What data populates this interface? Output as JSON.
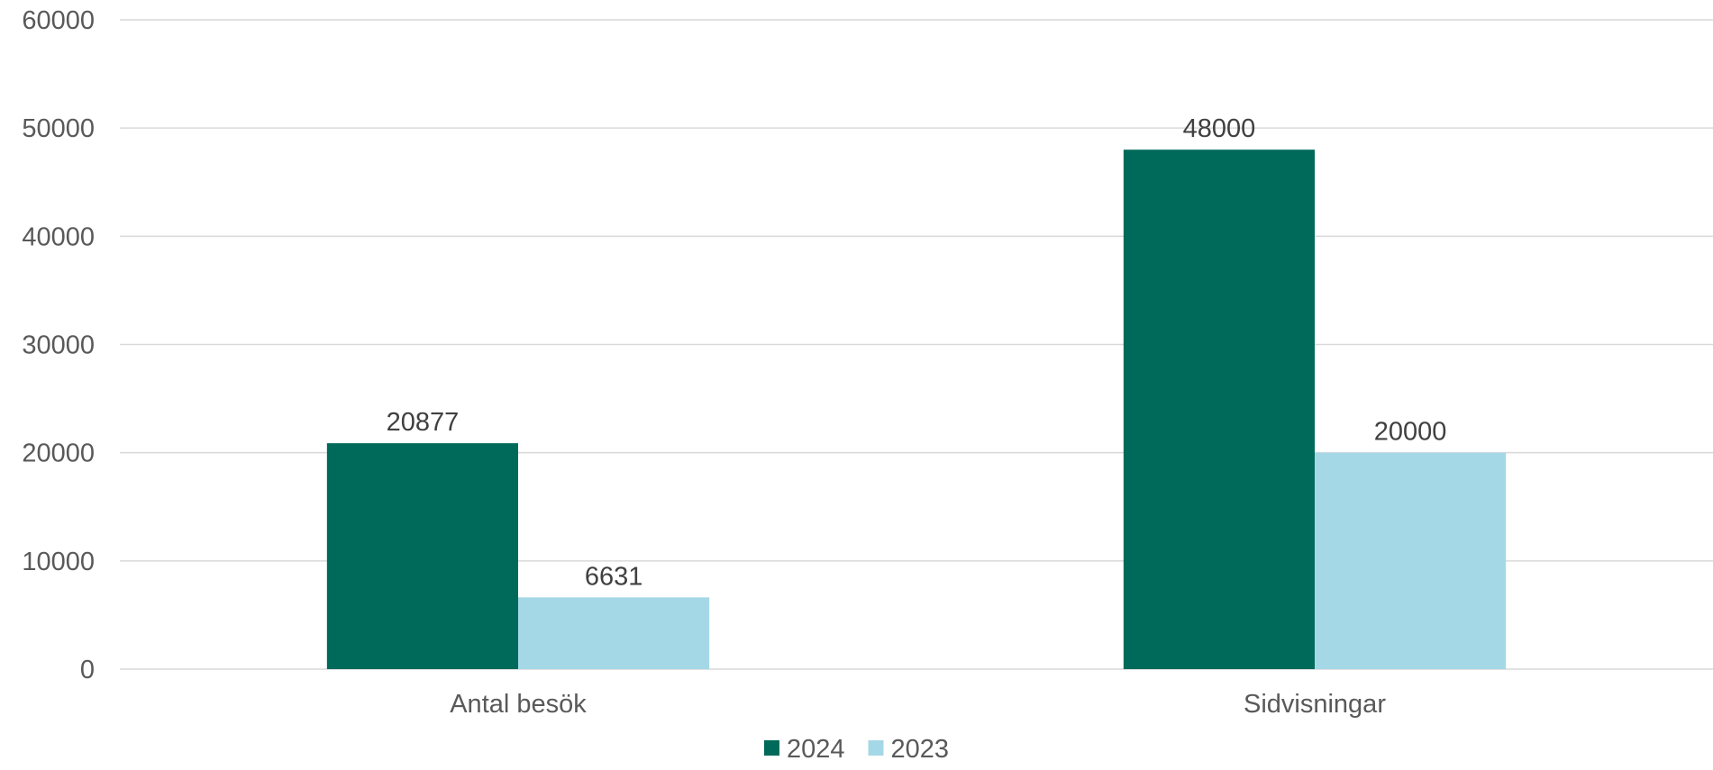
{
  "chart_data": {
    "type": "bar",
    "categories": [
      "Antal besök",
      "Sidvisningar"
    ],
    "series": [
      {
        "name": "2024",
        "values": [
          20877,
          48000
        ],
        "color": "#006a5a"
      },
      {
        "name": "2023",
        "values": [
          6631,
          20000
        ],
        "color": "#a5d8e6"
      }
    ],
    "yticks": [
      0,
      10000,
      20000,
      30000,
      40000,
      50000,
      60000
    ],
    "ylim": [
      0,
      60000
    ],
    "grid": true,
    "legend_position": "bottom",
    "data_labels": true
  }
}
